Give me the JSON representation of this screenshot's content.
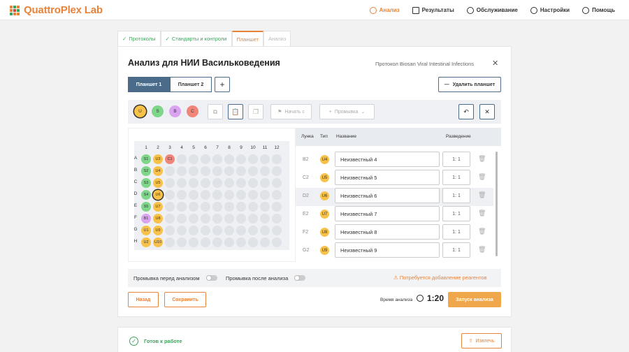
{
  "app": {
    "logo": "QuattroPlex Lab"
  },
  "nav": [
    {
      "label": "Анализ",
      "icon": "analysis-icon",
      "active": true
    },
    {
      "label": "Результаты",
      "icon": "results-icon"
    },
    {
      "label": "Обслуживание",
      "icon": "wrench-icon"
    },
    {
      "label": "Настройки",
      "icon": "gear-icon"
    },
    {
      "label": "Помощь",
      "icon": "help-icon"
    }
  ],
  "steps": [
    {
      "label": "Протоколы",
      "state": "done"
    },
    {
      "label": "Стандарты и контроли",
      "state": "done"
    },
    {
      "label": "Планшет",
      "state": "active"
    },
    {
      "label": "Анализ",
      "state": "disabled"
    }
  ],
  "header": {
    "title": "Анализ для НИИ Васильковедения",
    "protocol": "Протокол Biosan Viral Intestinal Infections"
  },
  "plate_tabs": [
    "Планшет 1",
    "Планшет 2"
  ],
  "delete_plate": "Удалить планшет",
  "toolbar": {
    "sample_types": [
      {
        "label": "U",
        "color": "#f8c24a",
        "selected": true
      },
      {
        "label": "S",
        "color": "#7ed68a"
      },
      {
        "label": "B",
        "color": "#d9a3f0"
      },
      {
        "label": "C",
        "color": "#f0867a"
      }
    ],
    "start_from": "Начать с",
    "wash": "Промывка"
  },
  "plate": {
    "columns": [
      "1",
      "2",
      "3",
      "4",
      "5",
      "6",
      "7",
      "8",
      "9",
      "10",
      "11",
      "12"
    ],
    "rows": [
      "A",
      "B",
      "C",
      "D",
      "E",
      "F",
      "G",
      "H"
    ],
    "wells": [
      {
        "row": 0,
        "col": 0,
        "label": "S1",
        "color": "#7ed68a"
      },
      {
        "row": 0,
        "col": 1,
        "label": "U3",
        "color": "#f8c24a"
      },
      {
        "row": 0,
        "col": 2,
        "label": "C1",
        "color": "#f0867a"
      },
      {
        "row": 1,
        "col": 0,
        "label": "S2",
        "color": "#7ed68a"
      },
      {
        "row": 1,
        "col": 1,
        "label": "U4",
        "color": "#f8c24a"
      },
      {
        "row": 2,
        "col": 0,
        "label": "S3",
        "color": "#7ed68a"
      },
      {
        "row": 2,
        "col": 1,
        "label": "U5",
        "color": "#f8c24a"
      },
      {
        "row": 3,
        "col": 0,
        "label": "S4",
        "color": "#7ed68a"
      },
      {
        "row": 3,
        "col": 1,
        "label": "U6",
        "color": "#f8c24a",
        "selected": true
      },
      {
        "row": 4,
        "col": 0,
        "label": "S5",
        "color": "#7ed68a"
      },
      {
        "row": 4,
        "col": 1,
        "label": "U7",
        "color": "#f8c24a"
      },
      {
        "row": 5,
        "col": 0,
        "label": "B1",
        "color": "#d9a3f0"
      },
      {
        "row": 5,
        "col": 1,
        "label": "U8",
        "color": "#f8c24a"
      },
      {
        "row": 6,
        "col": 0,
        "label": "U1",
        "color": "#f8c24a"
      },
      {
        "row": 6,
        "col": 1,
        "label": "U9",
        "color": "#f8c24a"
      },
      {
        "row": 7,
        "col": 0,
        "label": "U2",
        "color": "#f8c24a"
      },
      {
        "row": 7,
        "col": 1,
        "label": "U10",
        "color": "#f8c24a"
      }
    ]
  },
  "table": {
    "headers": {
      "well": "Лунка",
      "type": "Тип",
      "name": "Название",
      "dilution": "Разведение"
    },
    "rows": [
      {
        "well": "B2",
        "type": "U4",
        "name": "Неизвестный 4",
        "dilution": "1: 1"
      },
      {
        "well": "C2",
        "type": "U5",
        "name": "Неизвестный 5",
        "dilution": "1: 1"
      },
      {
        "well": "D2",
        "type": "U6",
        "name": "Неизвестный 6",
        "dilution": "1: 1",
        "highlight": true
      },
      {
        "well": "E2",
        "type": "U7",
        "name": "Неизвестный 7",
        "dilution": "1: 1"
      },
      {
        "well": "F2",
        "type": "U8",
        "name": "Неизвестный 8",
        "dilution": "1: 1"
      },
      {
        "well": "G2",
        "type": "U9",
        "name": "Неизвестный 9",
        "dilution": "1: 1"
      }
    ]
  },
  "wash": {
    "before": "Промывка перед анализом",
    "after": "Промывка после анализа",
    "warning": "Потребуется добавление реагентов"
  },
  "footer": {
    "back": "Назад",
    "save": "Сохранить",
    "time_label": "Время анализа",
    "time_value": "1:20",
    "start": "Запуск анализа"
  },
  "status": {
    "ready": "Готов к работе",
    "extract": "Извлечь"
  }
}
